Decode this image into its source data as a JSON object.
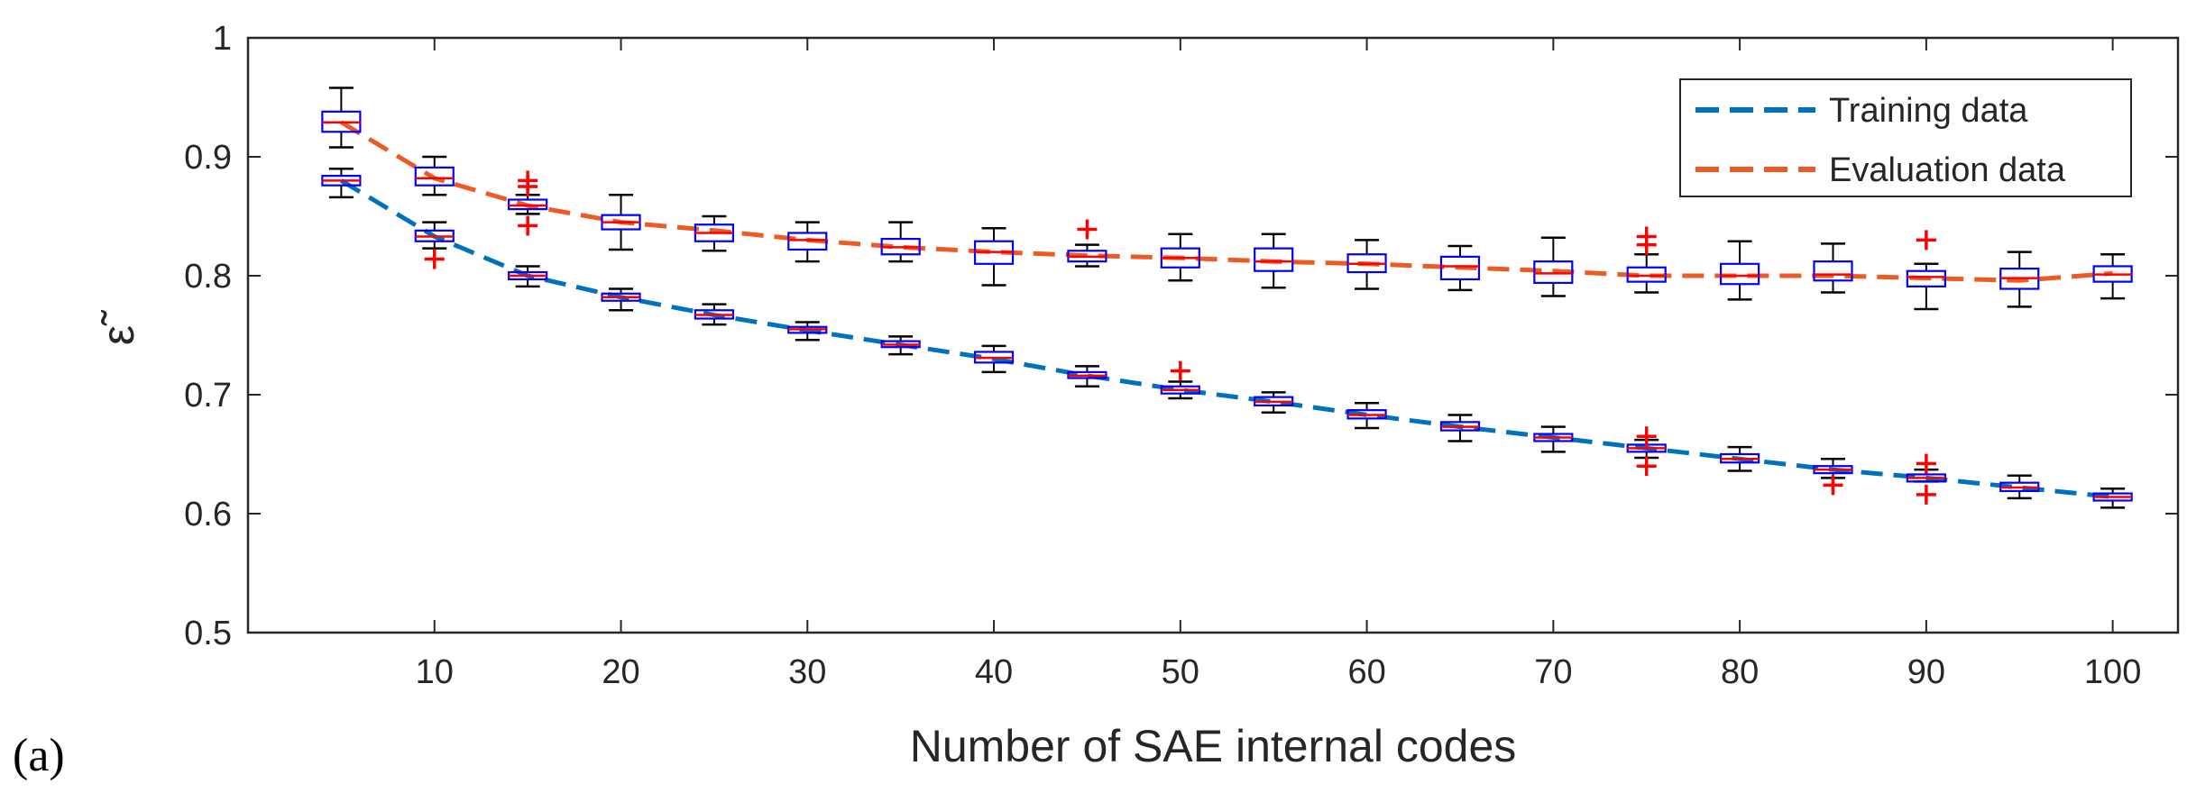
{
  "panel_label": "(a)",
  "chart_data": {
    "type": "boxplot-line",
    "title": "",
    "xlabel": "Number of SAE internal codes",
    "ylabel": "ε̃",
    "ylim": [
      0.5,
      1.0
    ],
    "xlim": [
      0,
      103.5
    ],
    "xticks": [
      10,
      20,
      30,
      40,
      50,
      60,
      70,
      80,
      90,
      100
    ],
    "yticks": [
      0.5,
      0.6,
      0.7,
      0.8,
      0.9,
      1.0
    ],
    "xtick_labels": [
      "10",
      "20",
      "30",
      "40",
      "50",
      "60",
      "70",
      "80",
      "90",
      "100"
    ],
    "ytick_labels": [
      "0.5",
      "0.6",
      "0.7",
      "0.8",
      "0.9",
      "1"
    ],
    "legend": {
      "position": "top-right"
    },
    "x": [
      5,
      10,
      15,
      20,
      25,
      30,
      35,
      40,
      45,
      50,
      55,
      60,
      65,
      70,
      75,
      80,
      85,
      90,
      95,
      100
    ],
    "series": [
      {
        "name": "Training data",
        "color": "#0072BD",
        "mean": [
          0.88,
          0.833,
          0.8,
          0.782,
          0.767,
          0.754,
          0.742,
          0.73,
          0.716,
          0.704,
          0.694,
          0.683,
          0.673,
          0.664,
          0.655,
          0.646,
          0.637,
          0.63,
          0.622,
          0.614
        ],
        "boxes": [
          {
            "q1": 0.876,
            "median": 0.88,
            "q3": 0.884,
            "lo": 0.866,
            "hi": 0.89,
            "outliers": []
          },
          {
            "q1": 0.829,
            "median": 0.833,
            "q3": 0.838,
            "lo": 0.823,
            "hi": 0.845,
            "outliers": [
              0.814
            ]
          },
          {
            "q1": 0.797,
            "median": 0.8,
            "q3": 0.803,
            "lo": 0.791,
            "hi": 0.808,
            "outliers": []
          },
          {
            "q1": 0.779,
            "median": 0.782,
            "q3": 0.785,
            "lo": 0.771,
            "hi": 0.789,
            "outliers": []
          },
          {
            "q1": 0.764,
            "median": 0.767,
            "q3": 0.771,
            "lo": 0.759,
            "hi": 0.776,
            "outliers": []
          },
          {
            "q1": 0.752,
            "median": 0.755,
            "q3": 0.757,
            "lo": 0.746,
            "hi": 0.761,
            "outliers": []
          },
          {
            "q1": 0.74,
            "median": 0.742,
            "q3": 0.745,
            "lo": 0.734,
            "hi": 0.749,
            "outliers": []
          },
          {
            "q1": 0.727,
            "median": 0.731,
            "q3": 0.736,
            "lo": 0.719,
            "hi": 0.741,
            "outliers": []
          },
          {
            "q1": 0.714,
            "median": 0.716,
            "q3": 0.719,
            "lo": 0.707,
            "hi": 0.724,
            "outliers": []
          },
          {
            "q1": 0.701,
            "median": 0.704,
            "q3": 0.707,
            "lo": 0.697,
            "hi": 0.711,
            "outliers": [
              0.72
            ]
          },
          {
            "q1": 0.691,
            "median": 0.694,
            "q3": 0.698,
            "lo": 0.685,
            "hi": 0.702,
            "outliers": []
          },
          {
            "q1": 0.68,
            "median": 0.683,
            "q3": 0.687,
            "lo": 0.672,
            "hi": 0.693,
            "outliers": []
          },
          {
            "q1": 0.67,
            "median": 0.673,
            "q3": 0.677,
            "lo": 0.661,
            "hi": 0.683,
            "outliers": []
          },
          {
            "q1": 0.661,
            "median": 0.664,
            "q3": 0.667,
            "lo": 0.652,
            "hi": 0.673,
            "outliers": []
          },
          {
            "q1": 0.652,
            "median": 0.655,
            "q3": 0.658,
            "lo": 0.647,
            "hi": 0.662,
            "outliers": [
              0.64,
              0.665
            ]
          },
          {
            "q1": 0.643,
            "median": 0.646,
            "q3": 0.65,
            "lo": 0.636,
            "hi": 0.656,
            "outliers": []
          },
          {
            "q1": 0.634,
            "median": 0.637,
            "q3": 0.64,
            "lo": 0.63,
            "hi": 0.646,
            "outliers": [
              0.624
            ]
          },
          {
            "q1": 0.627,
            "median": 0.63,
            "q3": 0.633,
            "lo": 0.627,
            "hi": 0.637,
            "outliers": [
              0.616,
              0.642
            ]
          },
          {
            "q1": 0.619,
            "median": 0.622,
            "q3": 0.626,
            "lo": 0.613,
            "hi": 0.632,
            "outliers": []
          },
          {
            "q1": 0.611,
            "median": 0.614,
            "q3": 0.617,
            "lo": 0.605,
            "hi": 0.621,
            "outliers": []
          }
        ]
      },
      {
        "name": "Evaluation data",
        "color": "#EE5A24",
        "mean": [
          0.929,
          0.882,
          0.859,
          0.845,
          0.838,
          0.83,
          0.824,
          0.82,
          0.817,
          0.815,
          0.812,
          0.81,
          0.807,
          0.804,
          0.8,
          0.8,
          0.8,
          0.798,
          0.796,
          0.802
        ],
        "boxes": [
          {
            "q1": 0.921,
            "median": 0.929,
            "q3": 0.938,
            "lo": 0.908,
            "hi": 0.958,
            "outliers": []
          },
          {
            "q1": 0.876,
            "median": 0.882,
            "q3": 0.891,
            "lo": 0.868,
            "hi": 0.9,
            "outliers": []
          },
          {
            "q1": 0.856,
            "median": 0.859,
            "q3": 0.864,
            "lo": 0.852,
            "hi": 0.868,
            "outliers": [
              0.842,
              0.875,
              0.88
            ]
          },
          {
            "q1": 0.839,
            "median": 0.845,
            "q3": 0.851,
            "lo": 0.822,
            "hi": 0.868,
            "outliers": []
          },
          {
            "q1": 0.829,
            "median": 0.836,
            "q3": 0.843,
            "lo": 0.821,
            "hi": 0.85,
            "outliers": []
          },
          {
            "q1": 0.822,
            "median": 0.83,
            "q3": 0.836,
            "lo": 0.812,
            "hi": 0.845,
            "outliers": []
          },
          {
            "q1": 0.818,
            "median": 0.824,
            "q3": 0.831,
            "lo": 0.812,
            "hi": 0.845,
            "outliers": []
          },
          {
            "q1": 0.81,
            "median": 0.82,
            "q3": 0.829,
            "lo": 0.792,
            "hi": 0.84,
            "outliers": []
          },
          {
            "q1": 0.812,
            "median": 0.816,
            "q3": 0.821,
            "lo": 0.808,
            "hi": 0.826,
            "outliers": [
              0.839
            ]
          },
          {
            "q1": 0.807,
            "median": 0.815,
            "q3": 0.823,
            "lo": 0.796,
            "hi": 0.835,
            "outliers": []
          },
          {
            "q1": 0.804,
            "median": 0.812,
            "q3": 0.823,
            "lo": 0.79,
            "hi": 0.835,
            "outliers": []
          },
          {
            "q1": 0.803,
            "median": 0.81,
            "q3": 0.818,
            "lo": 0.789,
            "hi": 0.83,
            "outliers": []
          },
          {
            "q1": 0.797,
            "median": 0.808,
            "q3": 0.816,
            "lo": 0.788,
            "hi": 0.825,
            "outliers": []
          },
          {
            "q1": 0.794,
            "median": 0.802,
            "q3": 0.812,
            "lo": 0.783,
            "hi": 0.832,
            "outliers": []
          },
          {
            "q1": 0.795,
            "median": 0.8,
            "q3": 0.807,
            "lo": 0.786,
            "hi": 0.818,
            "outliers": [
              0.826,
              0.833
            ]
          },
          {
            "q1": 0.793,
            "median": 0.8,
            "q3": 0.81,
            "lo": 0.78,
            "hi": 0.829,
            "outliers": []
          },
          {
            "q1": 0.796,
            "median": 0.801,
            "q3": 0.812,
            "lo": 0.786,
            "hi": 0.827,
            "outliers": []
          },
          {
            "q1": 0.791,
            "median": 0.799,
            "q3": 0.804,
            "lo": 0.772,
            "hi": 0.81,
            "outliers": [
              0.83
            ]
          },
          {
            "q1": 0.789,
            "median": 0.798,
            "q3": 0.806,
            "lo": 0.774,
            "hi": 0.82,
            "outliers": []
          },
          {
            "q1": 0.795,
            "median": 0.801,
            "q3": 0.808,
            "lo": 0.781,
            "hi": 0.818,
            "outliers": []
          }
        ]
      }
    ]
  },
  "colors": {
    "box_edge": "#0000FF",
    "median": "#FF0000",
    "whisker": "#000000",
    "outlier": "#FF0000",
    "axis": "#262626"
  }
}
